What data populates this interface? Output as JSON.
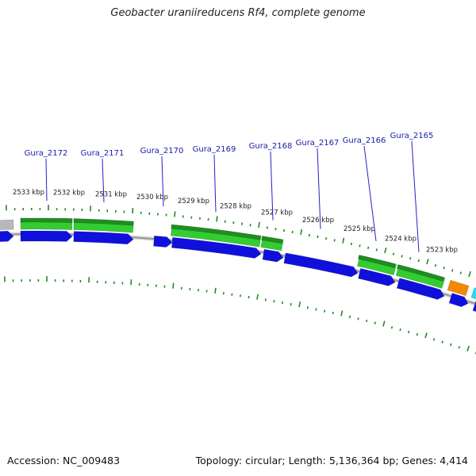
{
  "title": "Geobacter uraniireducens Rf4, complete genome",
  "footer": {
    "accession": "Accession: NC_009483",
    "info": "Topology: circular; Length: 5,136,364 bp; Genes: 4,414"
  },
  "colors": {
    "cds": "#1010dd",
    "gene_green": "#33cc33",
    "gene_green_dark": "#1e8f1e",
    "gene_orange": "#f08a00",
    "gene_cyan": "#22ddee",
    "gene_gray": "#b8b8b8",
    "backbone": "#999999",
    "tick": "#228822",
    "locus_label": "#1a1aaa",
    "locus_line": "#2222cc"
  },
  "kbp_labels": [
    {
      "text": "2533 kbp",
      "kbp": 2533
    },
    {
      "text": "2532 kbp",
      "kbp": 2532
    },
    {
      "text": "2531 kbp",
      "kbp": 2531
    },
    {
      "text": "2530 kbp",
      "kbp": 2530
    },
    {
      "text": "2529 kbp",
      "kbp": 2529
    },
    {
      "text": "2528 kbp",
      "kbp": 2528
    },
    {
      "text": "2527 kbp",
      "kbp": 2527
    },
    {
      "text": "2526 kbp",
      "kbp": 2526
    },
    {
      "text": "2525 kbp",
      "kbp": 2525
    },
    {
      "text": "2524 kbp",
      "kbp": 2524
    },
    {
      "text": "2523 kbp",
      "kbp": 2523
    }
  ],
  "loci": [
    {
      "label": "Gura_2172"
    },
    {
      "label": "Gura_2171"
    },
    {
      "label": "Gura_2170"
    },
    {
      "label": "Gura_2169"
    },
    {
      "label": "Gura_2168"
    },
    {
      "label": "Gura_2167"
    },
    {
      "label": "Gura_2166"
    },
    {
      "label": "Gura_2165"
    }
  ]
}
